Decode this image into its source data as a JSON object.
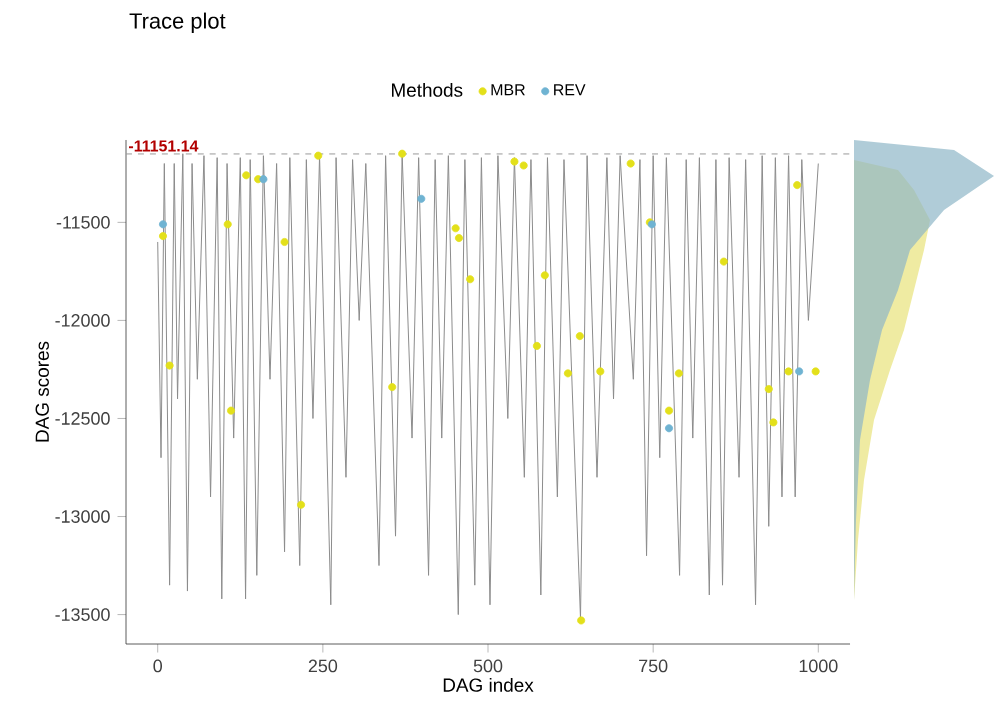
{
  "chart_data": {
    "type": "scatter",
    "title": "Trace plot",
    "xlabel": "DAG index",
    "ylabel": "DAG scores",
    "legend_title": "Methods",
    "legend": "top",
    "xlim": [
      -48,
      1048
    ],
    "ylim": [
      -13650,
      -11080
    ],
    "xticks": [
      0,
      250,
      500,
      750,
      1000
    ],
    "yticks": [
      -13500,
      -13000,
      -12500,
      -12000,
      -11500
    ],
    "ref_lines": [
      {
        "axis": "y",
        "value": -11151.14,
        "label": "-11151.14",
        "color": "#999999",
        "line_style": "dashed"
      }
    ],
    "series": [
      {
        "type": "line",
        "color": "#8c8c8c",
        "x": [
          0,
          5,
          10,
          18,
          25,
          30,
          38,
          45,
          52,
          60,
          70,
          80,
          90,
          97,
          105,
          115,
          125,
          133,
          140,
          150,
          160,
          170,
          180,
          192,
          200,
          215,
          225,
          235,
          245,
          262,
          270,
          285,
          295,
          305,
          315,
          335,
          345,
          360,
          370,
          385,
          395,
          410,
          420,
          430,
          440,
          455,
          465,
          480,
          490,
          503,
          515,
          530,
          540,
          555,
          565,
          580,
          590,
          605,
          615,
          640,
          650,
          665,
          680,
          690,
          700,
          720,
          730,
          740,
          750,
          760,
          770,
          790,
          800,
          810,
          820,
          835,
          845,
          855,
          865,
          880,
          890,
          905,
          915,
          925,
          935,
          945,
          955,
          965,
          975,
          985,
          1000
        ],
        "values": [
          -11600,
          -12700,
          -11200,
          -13350,
          -11200,
          -12400,
          -11150,
          -13380,
          -11200,
          -12300,
          -11160,
          -12900,
          -11170,
          -13420,
          -11200,
          -12600,
          -11170,
          -13420,
          -11180,
          -13300,
          -11160,
          -12300,
          -11200,
          -13180,
          -11170,
          -13250,
          -11180,
          -12500,
          -11160,
          -13450,
          -11170,
          -12800,
          -11180,
          -12000,
          -11200,
          -13250,
          -11160,
          -13100,
          -11150,
          -12600,
          -11170,
          -13300,
          -11180,
          -12600,
          -11160,
          -13500,
          -11180,
          -13350,
          -11170,
          -13450,
          -11160,
          -12500,
          -11170,
          -12800,
          -11180,
          -13400,
          -11170,
          -12900,
          -11180,
          -13520,
          -11160,
          -12800,
          -11170,
          -12400,
          -11160,
          -12300,
          -11180,
          -13200,
          -11160,
          -12700,
          -11170,
          -13300,
          -11180,
          -12600,
          -11170,
          -13400,
          -11180,
          -13350,
          -11170,
          -12800,
          -11180,
          -13450,
          -11160,
          -13050,
          -11170,
          -12900,
          -11160,
          -12900,
          -11180,
          -12000,
          -11200
        ]
      },
      {
        "type": "scatter",
        "name": "MBR",
        "color": "#e3e01a",
        "x": [
          8,
          18,
          106,
          111,
          134,
          152,
          192,
          217,
          243,
          355,
          370,
          451,
          456,
          473,
          540,
          554,
          586,
          574,
          621,
          639,
          670,
          641,
          716,
          745,
          857,
          774,
          789,
          925,
          932,
          955,
          968,
          996
        ],
        "values": [
          -11570,
          -12230,
          -11510,
          -12460,
          -11260,
          -11280,
          -11600,
          -12940,
          -11160,
          -12340,
          -11150,
          -11530,
          -11580,
          -11790,
          -11190,
          -11210,
          -11770,
          -12130,
          -12270,
          -12080,
          -12260,
          -13530,
          -11200,
          -11500,
          -11700,
          -12460,
          -12270,
          -12350,
          -12520,
          -12260,
          -11310,
          -12260
        ]
      },
      {
        "type": "scatter",
        "name": "REV",
        "color": "#6fb3d2",
        "x": [
          8,
          160,
          399,
          748,
          774,
          971
        ],
        "values": [
          -11510,
          -11280,
          -11380,
          -11510,
          -12550,
          -12260
        ]
      }
    ]
  }
}
